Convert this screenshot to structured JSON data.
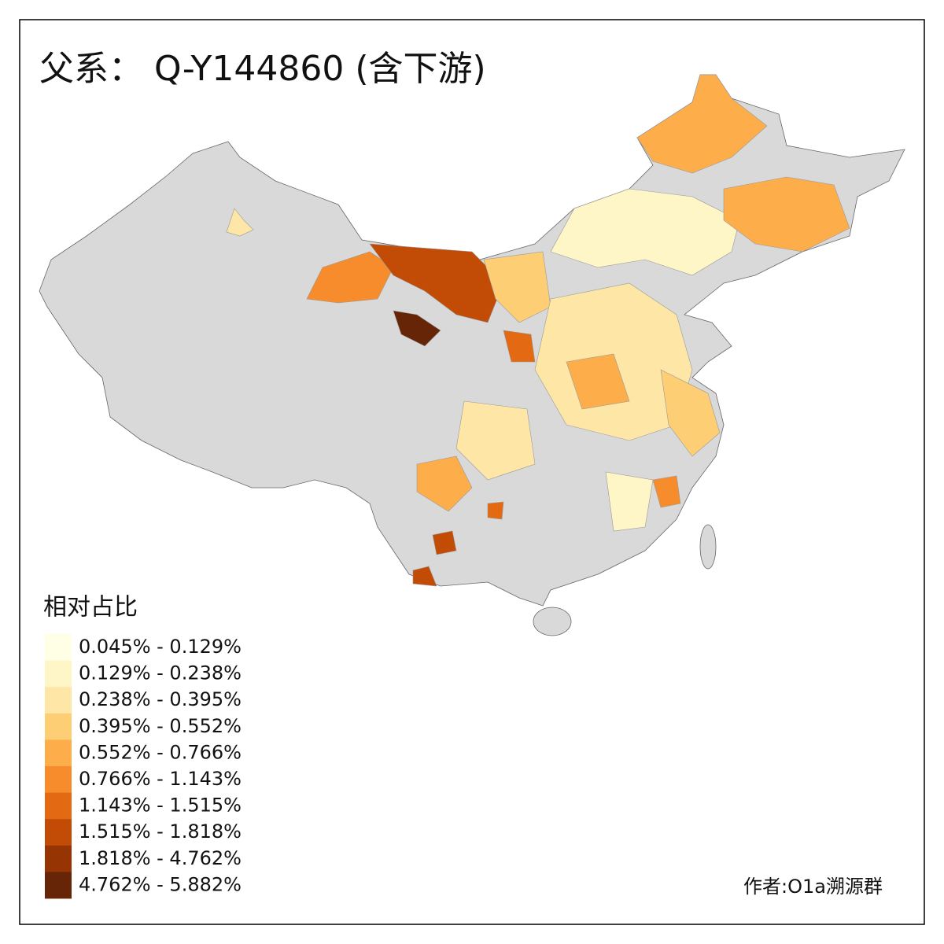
{
  "title": "父系： Q-Y144860 (含下游)",
  "legend": {
    "title": "相对占比",
    "items": [
      {
        "label": "0.045% - 0.129%",
        "color": "#ffffe5"
      },
      {
        "label": "0.129% - 0.238%",
        "color": "#fff6c8"
      },
      {
        "label": "0.238% - 0.395%",
        "color": "#fee6a6"
      },
      {
        "label": "0.395% - 0.552%",
        "color": "#fece74"
      },
      {
        "label": "0.552% - 0.766%",
        "color": "#fdae4b"
      },
      {
        "label": "0.766% - 1.143%",
        "color": "#f68c2b"
      },
      {
        "label": "1.143% - 1.515%",
        "color": "#e36912"
      },
      {
        "label": "1.515% - 1.818%",
        "color": "#c24b05"
      },
      {
        "label": "1.818% - 4.762%",
        "color": "#973404"
      },
      {
        "label": "4.762% - 5.882%",
        "color": "#662506"
      }
    ]
  },
  "credit": "作者:O1a溯源群"
}
